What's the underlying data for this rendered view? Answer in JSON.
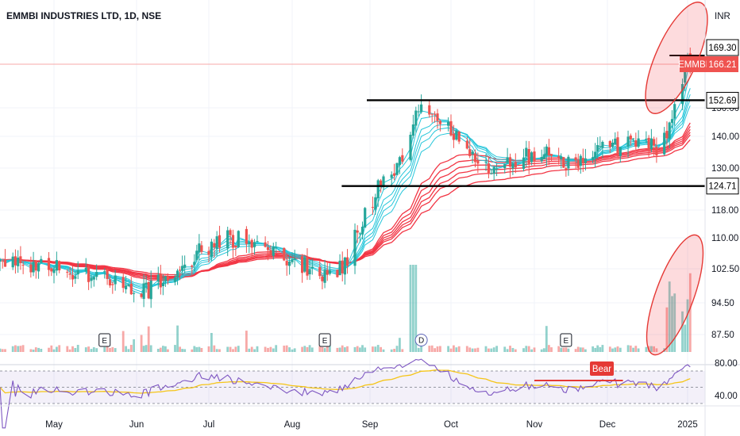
{
  "chart_data": {
    "type": "candlestick",
    "title": "EMMBI INDUSTRIES LTD, 1D, NSE",
    "currency": "INR",
    "symbol": "EMMBI",
    "last_price": 166.21,
    "high_marker": 169.3,
    "resistance": 152.69,
    "support": 124.71,
    "y_axis": {
      "scale": "log",
      "range": [
        80,
        190
      ],
      "ticks": [
        "150.00",
        "140.00",
        "130.00",
        "118.00",
        "110.00",
        "102.50",
        "94.50",
        "87.50"
      ]
    },
    "rsi_axis": {
      "range": [
        20,
        90
      ],
      "ticks": [
        "80.00",
        "40.00"
      ],
      "band": [
        30,
        70
      ]
    },
    "x_axis": {
      "labels": [
        {
          "label": "May",
          "date": "2024-05-01"
        },
        {
          "label": "Jun",
          "date": "2024-06-01"
        },
        {
          "label": "Jul",
          "date": "2024-07-01"
        },
        {
          "label": "Aug",
          "date": "2024-08-01"
        },
        {
          "label": "Sep",
          "date": "2024-09-01"
        },
        {
          "label": "Oct",
          "date": "2024-10-01"
        },
        {
          "label": "Nov",
          "date": "2024-11-01"
        },
        {
          "label": "Dec",
          "date": "2024-12-01"
        },
        {
          "label": "2025",
          "date": "2025-01-01"
        }
      ]
    },
    "events": [
      {
        "label": "E",
        "date": "2024-05-20"
      },
      {
        "label": "E",
        "date": "2024-08-14"
      },
      {
        "label": "D",
        "date": "2024-09-20"
      },
      {
        "label": "E",
        "date": "2024-11-14"
      }
    ],
    "rsi_annotation": {
      "label": "Bear"
    },
    "price_path": [
      {
        "date": "2024-04-10",
        "close": 104
      },
      {
        "date": "2024-05-01",
        "close": 103
      },
      {
        "date": "2024-05-15",
        "close": 101
      },
      {
        "date": "2024-06-05",
        "close": 97
      },
      {
        "date": "2024-06-20",
        "close": 103
      },
      {
        "date": "2024-07-05",
        "close": 110
      },
      {
        "date": "2024-07-20",
        "close": 109
      },
      {
        "date": "2024-08-01",
        "close": 104
      },
      {
        "date": "2024-08-15",
        "close": 101
      },
      {
        "date": "2024-08-22",
        "close": 104
      },
      {
        "date": "2024-09-05",
        "close": 126
      },
      {
        "date": "2024-09-12",
        "close": 131
      },
      {
        "date": "2024-09-18",
        "close": 149
      },
      {
        "date": "2024-09-25",
        "close": 147
      },
      {
        "date": "2024-10-05",
        "close": 138
      },
      {
        "date": "2024-10-15",
        "close": 128
      },
      {
        "date": "2024-10-25",
        "close": 133
      },
      {
        "date": "2024-11-05",
        "close": 136
      },
      {
        "date": "2024-11-15",
        "close": 131
      },
      {
        "date": "2024-11-25",
        "close": 136
      },
      {
        "date": "2024-12-05",
        "close": 137
      },
      {
        "date": "2024-12-15",
        "close": 140
      },
      {
        "date": "2024-12-21",
        "close": 134
      },
      {
        "date": "2024-12-26",
        "close": 146
      },
      {
        "date": "2024-12-30",
        "close": 160
      },
      {
        "date": "2025-01-02",
        "close": 166.21
      }
    ]
  }
}
